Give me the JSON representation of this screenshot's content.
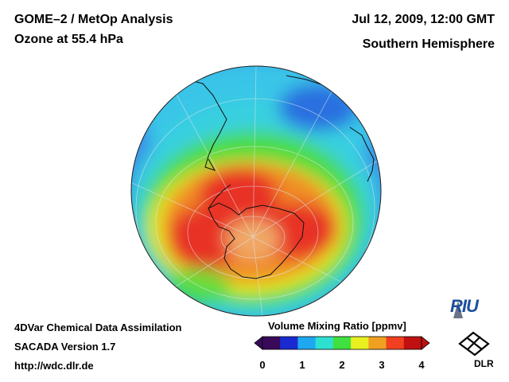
{
  "header": {
    "title_left_1": "GOME–2 / MetOp Analysis",
    "title_left_2": "Ozone at 55.4 hPa",
    "title_right_1": "Jul 12, 2009, 12:00 GMT",
    "title_right_2": "Southern Hemisphere"
  },
  "footer": {
    "line1": "4DVar Chemical Data Assimilation",
    "line2": "SACADA Version 1.7",
    "line3": "http://wdc.dlr.de"
  },
  "colorbar": {
    "title": "Volume Mixing Ratio [ppmv]",
    "ticks": [
      "0",
      "1",
      "2",
      "3",
      "4"
    ],
    "min": 0,
    "max": 4,
    "colors": [
      "#3a0a5a",
      "#1a2ad0",
      "#1ea8f0",
      "#2ee0d0",
      "#40e040",
      "#e8f020",
      "#f0a020",
      "#f04020",
      "#c01010"
    ]
  },
  "map": {
    "projection": "orthographic south polar",
    "field": "ozone volume mixing ratio",
    "colors": {
      "ocean_blue": "#3c8ce8",
      "cyan": "#38d0e8",
      "green": "#48dc40",
      "yellow": "#e8e820",
      "orange": "#f08c28",
      "red": "#e83028",
      "pole_tan": "#f0a868"
    }
  },
  "logos": {
    "riu": "RIU",
    "dlr": "DLR"
  }
}
